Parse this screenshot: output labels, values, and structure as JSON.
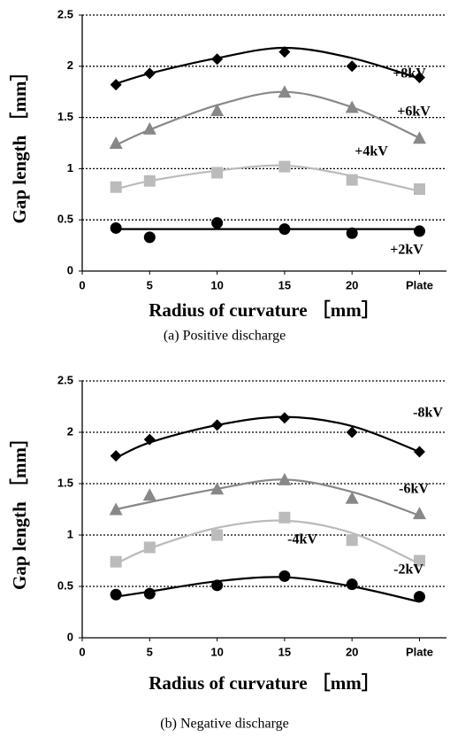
{
  "chart_data": [
    {
      "type": "scatter",
      "caption": "(a) Positive discharge",
      "xlabel": "Radius of curvature ［mm］",
      "ylabel": "Gap length ［mm］",
      "x": [
        2.5,
        5,
        10,
        15,
        20,
        25
      ],
      "xlim": [
        0,
        27
      ],
      "xticks": [
        0,
        5,
        10,
        15,
        20,
        {
          "value": 25,
          "label": "Plate"
        }
      ],
      "ylim": [
        0,
        2.5
      ],
      "yticks": [
        0,
        0.5,
        1,
        1.5,
        2,
        2.5
      ],
      "grid": true,
      "series": [
        {
          "name": "+8kV",
          "color": "#000000",
          "marker": "diamond",
          "values": [
            1.82,
            1.93,
            2.07,
            2.14,
            2.0,
            1.89
          ],
          "fit": [
            1.83,
            1.93,
            2.08,
            2.18,
            2.08,
            1.88
          ]
        },
        {
          "name": "+6kV",
          "color": "#888888",
          "marker": "triangle",
          "values": [
            1.25,
            1.39,
            1.57,
            1.75,
            1.6,
            1.3
          ],
          "fit": [
            1.23,
            1.38,
            1.62,
            1.75,
            1.6,
            1.3
          ]
        },
        {
          "name": "+4kV",
          "color": "#bbbbbb",
          "marker": "square",
          "values": [
            0.82,
            0.88,
            0.96,
            1.02,
            0.89,
            0.8
          ],
          "fit": [
            0.8,
            0.88,
            0.98,
            1.03,
            0.93,
            0.78
          ]
        },
        {
          "name": "+2kV",
          "color": "#000000",
          "marker": "circle",
          "values": [
            0.42,
            0.33,
            0.47,
            0.41,
            0.37,
            0.39
          ],
          "fit": [
            0.41,
            0.41,
            0.41,
            0.41,
            0.41,
            0.41
          ]
        }
      ]
    },
    {
      "type": "scatter",
      "caption": "(b) Negative discharge",
      "xlabel": "Radius of curvature ［mm］",
      "ylabel": "Gap length ［mm］",
      "x": [
        2.5,
        5,
        10,
        15,
        20,
        25
      ],
      "xlim": [
        0,
        27
      ],
      "xticks": [
        0,
        5,
        10,
        15,
        20,
        {
          "value": 25,
          "label": "Plate"
        }
      ],
      "ylim": [
        0,
        2.5
      ],
      "yticks": [
        0,
        0.5,
        1,
        1.5,
        2,
        2.5
      ],
      "grid": true,
      "series": [
        {
          "name": "-8kV",
          "color": "#000000",
          "marker": "diamond",
          "values": [
            1.77,
            1.93,
            2.07,
            2.14,
            2.0,
            1.81
          ],
          "fit": [
            1.75,
            1.9,
            2.07,
            2.15,
            2.06,
            1.81
          ]
        },
        {
          "name": "-6kV",
          "color": "#888888",
          "marker": "triangle",
          "values": [
            1.25,
            1.39,
            1.45,
            1.54,
            1.36,
            1.21
          ],
          "fit": [
            1.25,
            1.32,
            1.45,
            1.54,
            1.42,
            1.19
          ]
        },
        {
          "name": "-4kV",
          "color": "#bbbbbb",
          "marker": "square",
          "values": [
            0.74,
            0.88,
            1.0,
            1.17,
            0.95,
            0.75
          ],
          "fit": [
            0.72,
            0.87,
            1.07,
            1.14,
            1.02,
            0.72
          ]
        },
        {
          "name": "-2kV",
          "color": "#000000",
          "marker": "circle",
          "values": [
            0.42,
            0.43,
            0.51,
            0.6,
            0.52,
            0.4
          ],
          "fit": [
            0.4,
            0.45,
            0.55,
            0.59,
            0.5,
            0.35
          ]
        }
      ]
    }
  ]
}
